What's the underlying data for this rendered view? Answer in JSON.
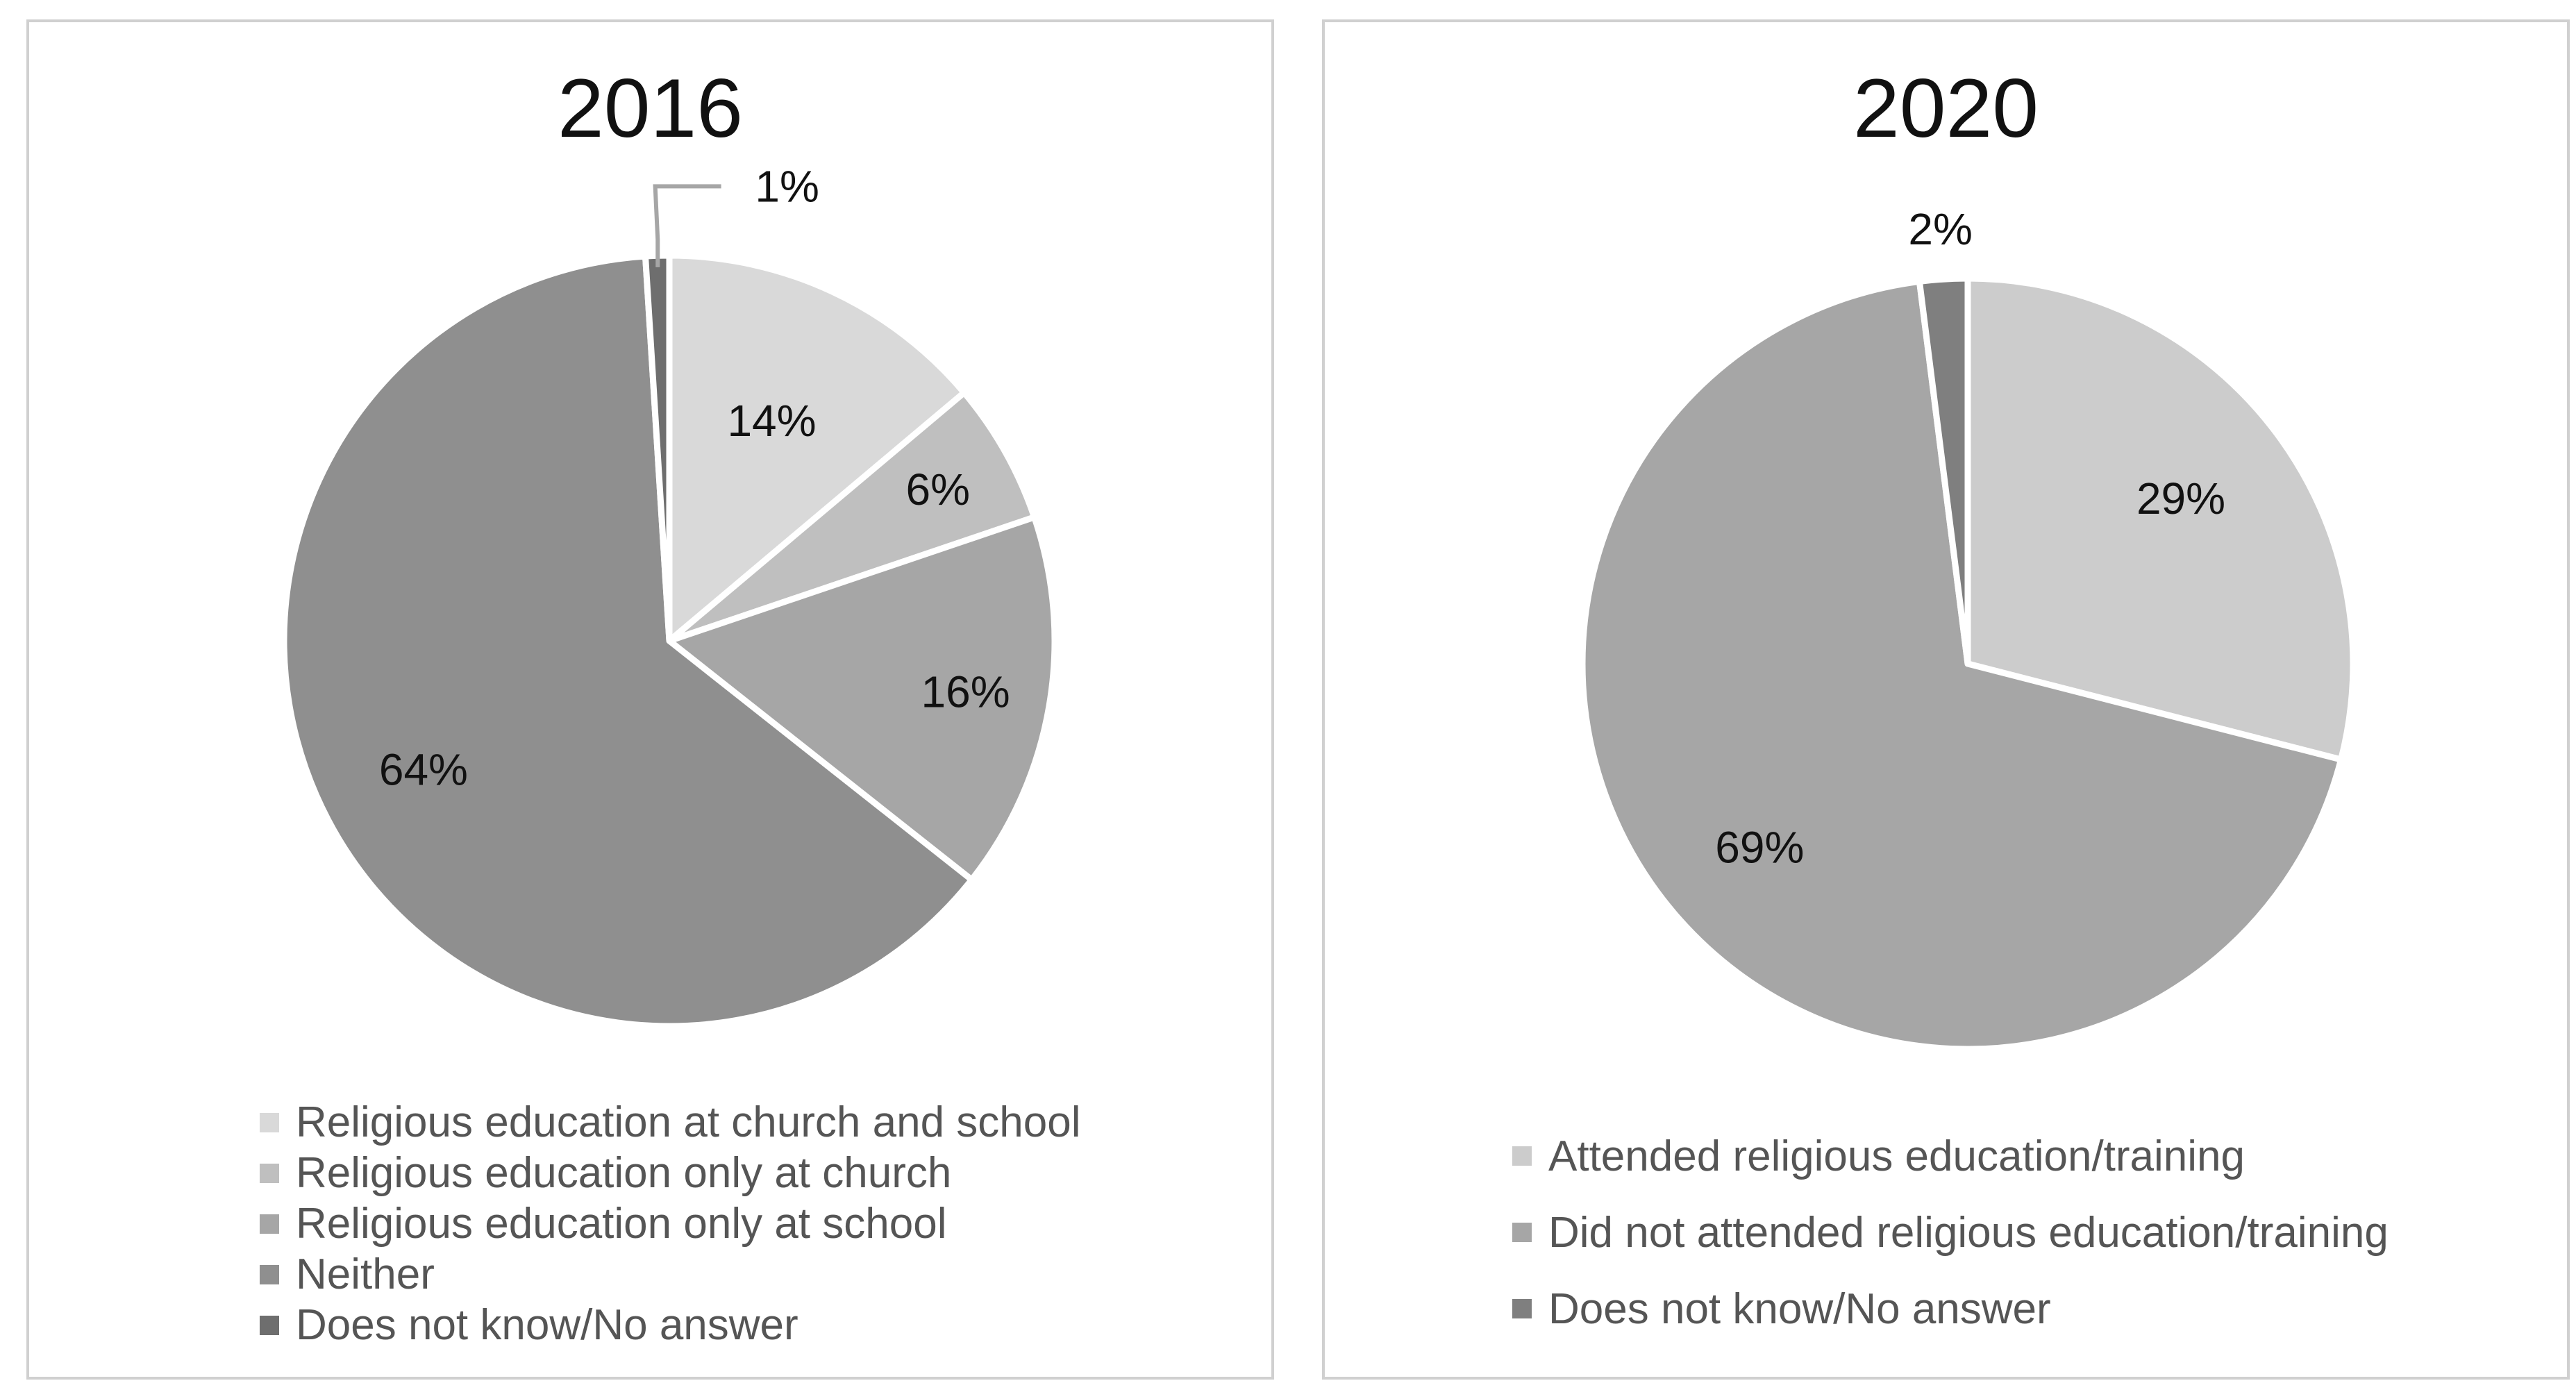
{
  "chart_data": [
    {
      "type": "pie",
      "title": "2016",
      "labels": [
        "Religious education at church and school",
        "Religious education only at church",
        "Religious education only at school",
        "Neither",
        "Does not know/No answer"
      ],
      "values": [
        14,
        6,
        16,
        64,
        1
      ],
      "data_labels": [
        "14%",
        "6%",
        "16%",
        "64%",
        "1%"
      ],
      "colors": [
        "#d9d9d9",
        "#bfbfbf",
        "#a6a6a6",
        "#8f8f8f",
        "#6e6e6e"
      ],
      "legend_position": "bottom"
    },
    {
      "type": "pie",
      "title": "2020",
      "labels": [
        "Attended religious education/training",
        "Did not attended religious education/training",
        "Does not know/No answer"
      ],
      "values": [
        29,
        69,
        2
      ],
      "data_labels": [
        "29%",
        "69%",
        "2%"
      ],
      "colors": [
        "#cccccc",
        "#a6a6a6",
        "#7f7f7f"
      ],
      "legend_position": "bottom"
    }
  ]
}
